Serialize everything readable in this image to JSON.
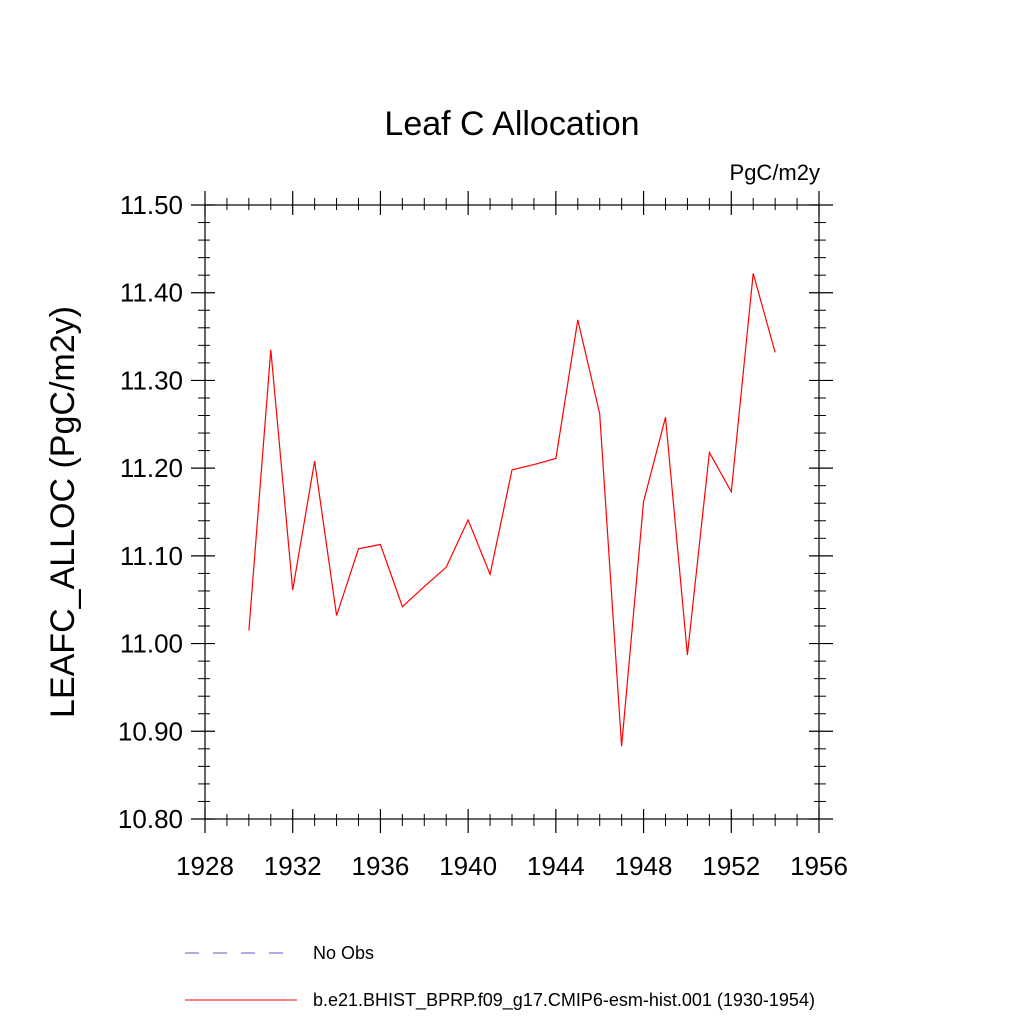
{
  "chart_data": {
    "type": "line",
    "title": "Leaf C Allocation",
    "units_label": "PgC/m2y",
    "ylabel": "LEAFC_ALLOC  (PgC/m2y)",
    "xlabel": "",
    "xlim": [
      1928,
      1956
    ],
    "ylim": [
      10.8,
      11.5
    ],
    "x_ticks": [
      1928,
      1932,
      1936,
      1940,
      1944,
      1948,
      1952,
      1956
    ],
    "x_tick_labels": [
      "1928",
      "1932",
      "1936",
      "1940",
      "1944",
      "1948",
      "1952",
      "1956"
    ],
    "y_ticks": [
      10.8,
      10.9,
      11.0,
      11.1,
      11.2,
      11.3,
      11.4,
      11.5
    ],
    "y_tick_labels": [
      "10.80",
      "10.90",
      "11.00",
      "11.10",
      "11.20",
      "11.30",
      "11.40",
      "11.50"
    ],
    "grid": false,
    "legend_position": "bottom",
    "series": [
      {
        "name": "b.e21.BHIST_BPRP.f09_g17.CMIP6-esm-hist.001 (1930-1954)",
        "color": "#ff0000",
        "style": "solid",
        "x": [
          1930,
          1931,
          1932,
          1933,
          1934,
          1935,
          1936,
          1937,
          1938,
          1939,
          1940,
          1941,
          1942,
          1943,
          1944,
          1945,
          1946,
          1947,
          1948,
          1949,
          1950,
          1951,
          1952,
          1953,
          1954
        ],
        "y": [
          11.015,
          11.335,
          11.061,
          11.208,
          11.032,
          11.108,
          11.113,
          11.042,
          11.065,
          11.087,
          11.141,
          11.079,
          11.198,
          11.204,
          11.211,
          11.369,
          11.262,
          10.883,
          11.162,
          11.258,
          10.987,
          11.218,
          11.173,
          11.422,
          11.332
        ]
      }
    ],
    "legend": [
      {
        "label": "No Obs",
        "color": "#6a5acd",
        "style": "dashed"
      },
      {
        "label": "b.e21.BHIST_BPRP.f09_g17.CMIP6-esm-hist.001 (1930-1954)",
        "color": "#ff0000",
        "style": "solid"
      }
    ]
  }
}
